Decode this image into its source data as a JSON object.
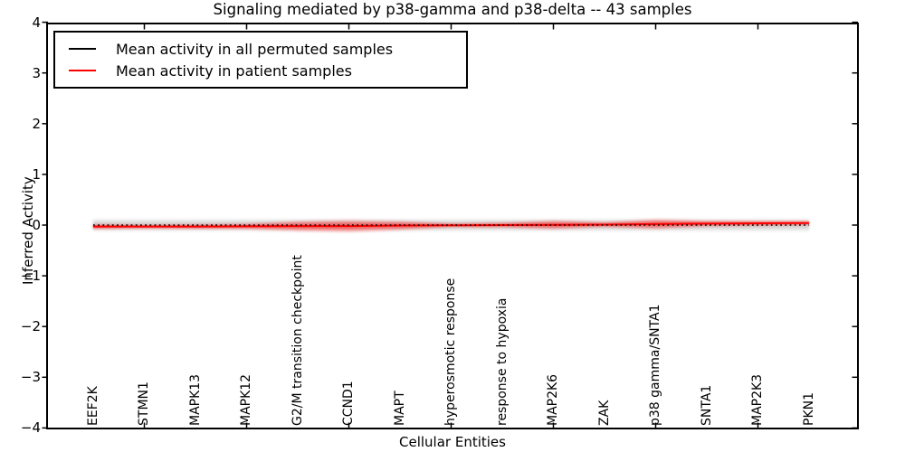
{
  "chart_data": {
    "type": "line",
    "title": "Signaling mediated by p38-gamma and p38-delta -- 43 samples",
    "xlabel": "Cellular Entities",
    "ylabel": "Inferred Activity",
    "ylim": [
      -4,
      4
    ],
    "ytick_labels": [
      "4",
      "3",
      "2",
      "1",
      "0",
      "−1",
      "−2",
      "−3",
      "−4"
    ],
    "categories": [
      "EEF2K",
      "STMN1",
      "MAPK13",
      "MAPK12",
      "G2/M transition checkpoint",
      "CCND1",
      "MAPT",
      "hyperosmotic response",
      "response to hypoxia",
      "MAP2K6",
      "ZAK",
      "p38 gamma/SNTA1",
      "SNTA1",
      "MAP2K3",
      "PKN1"
    ],
    "grid": false,
    "legend_position": "upper left",
    "series": [
      {
        "name": "Mean activity in all permuted samples",
        "color": "#000000",
        "line_style": "dotted",
        "values": [
          0,
          0,
          0,
          0,
          0,
          0,
          0,
          0,
          0,
          0,
          0,
          0,
          0,
          0,
          0
        ]
      },
      {
        "name": "Mean activity in patient samples",
        "color": "#ff0000",
        "line_style": "solid",
        "values": [
          -0.03,
          -0.03,
          -0.03,
          -0.025,
          -0.02,
          -0.02,
          -0.01,
          -0.005,
          0,
          0.005,
          0.01,
          0.02,
          0.03,
          0.035,
          0.04
        ]
      }
    ],
    "bands": [
      {
        "name": "permuted samples spread",
        "color": "#d4d4d4",
        "center_series": 0,
        "half_widths": [
          0.075,
          0.075,
          0.075,
          0.075,
          0.075,
          0.075,
          0.075,
          0.075,
          0.075,
          0.075,
          0.075,
          0.075,
          0.075,
          0.075,
          0.075
        ]
      },
      {
        "name": "patient samples spread",
        "color": "#ff0000",
        "center_series": 1,
        "half_widths": [
          0.05,
          0.04,
          0.045,
          0.055,
          0.1,
          0.12,
          0.09,
          0.04,
          0.05,
          0.09,
          0.05,
          0.1,
          0.06,
          0.05,
          0.04
        ]
      }
    ]
  }
}
